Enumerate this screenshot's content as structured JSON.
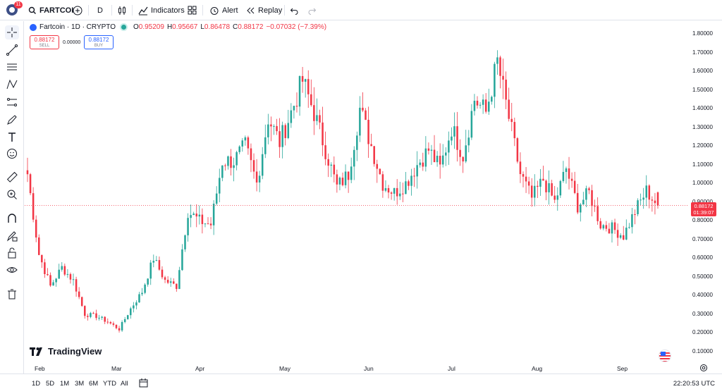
{
  "topbar": {
    "notification_count": "11",
    "symbol": "FARTCOI",
    "interval": "D",
    "indicators_label": "Indicators",
    "alert_label": "Alert",
    "replay_label": "Replay"
  },
  "legend": {
    "title": "Fartcoin · 1D · CRYPTO",
    "open_key": "O",
    "open": "0.95209",
    "high_key": "H",
    "high": "0.95667",
    "low_key": "L",
    "low": "0.86478",
    "close_key": "C",
    "close": "0.88172",
    "change": "−0.07032 (−7.39%)"
  },
  "trade": {
    "sell_price": "0.88172",
    "sell_label": "SELL",
    "spread": "0.00000",
    "buy_price": "0.88172",
    "buy_label": "BUY"
  },
  "price_axis": {
    "labels": [
      "1.80000",
      "1.70000",
      "1.60000",
      "1.50000",
      "1.40000",
      "1.30000",
      "1.20000",
      "1.10000",
      "1.00000",
      "0.90000",
      "0.80000",
      "0.70000",
      "0.60000",
      "0.50000",
      "0.40000",
      "0.30000",
      "0.20000",
      "0.10000"
    ],
    "current_price": "0.88172",
    "countdown": "01:39:07"
  },
  "time_axis": {
    "months": [
      "Feb",
      "Mar",
      "Apr",
      "May",
      "Jun",
      "Jul",
      "Aug",
      "Sep"
    ]
  },
  "bottombar": {
    "ranges": [
      "1D",
      "5D",
      "1M",
      "3M",
      "6M",
      "YTD",
      "All"
    ],
    "utc_time": "22:20:53 UTC"
  },
  "branding": {
    "logo_text": "TradingView"
  },
  "colors": {
    "up": "#26a69a",
    "down": "#f23645",
    "accent": "#2962ff"
  },
  "chart_data": {
    "type": "candlestick",
    "symbol": "FARTCOI",
    "interval": "1D",
    "ylim": [
      0.05,
      1.85
    ],
    "x_months": [
      "Feb",
      "Mar",
      "Apr",
      "May",
      "Jun",
      "Jul",
      "Aug",
      "Sep"
    ],
    "weekly_closes_approx": [
      1.05,
      0.62,
      0.45,
      0.55,
      0.48,
      0.3,
      0.29,
      0.26,
      0.22,
      0.33,
      0.42,
      0.6,
      0.48,
      0.45,
      0.85,
      0.8,
      0.78,
      1.12,
      1.12,
      1.2,
      1.0,
      1.35,
      1.22,
      1.38,
      1.55,
      1.38,
      1.18,
      0.98,
      1.05,
      1.4,
      1.2,
      1.0,
      0.95,
      1.0,
      1.1,
      1.18,
      1.08,
      1.3,
      1.15,
      1.45,
      1.38,
      1.65,
      1.35,
      1.05,
      0.92,
      1.02,
      0.9,
      1.08,
      0.88,
      0.95,
      0.78,
      0.76,
      0.72,
      0.85,
      0.96,
      0.88172
    ],
    "last": {
      "open": 0.95209,
      "high": 0.95667,
      "low": 0.86478,
      "close": 0.88172
    }
  }
}
